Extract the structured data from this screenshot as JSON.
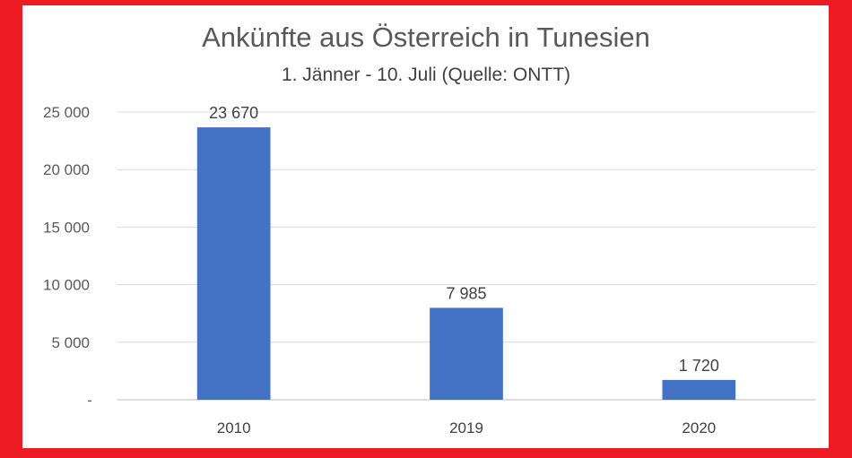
{
  "chart_data": {
    "type": "bar",
    "title": "Ankünfte aus Österreich in Tunesien",
    "subtitle": "1. Jänner - 10. Juli (Quelle: ONTT)",
    "categories": [
      "2010",
      "2019",
      "2020"
    ],
    "values": [
      23670,
      7985,
      1720
    ],
    "value_labels": [
      "23 670",
      "7 985",
      "1 720"
    ],
    "ylim": [
      0,
      25000
    ],
    "y_ticks": [
      0,
      5000,
      10000,
      15000,
      20000,
      25000
    ],
    "y_tick_labels": [
      "-",
      "5 000",
      "10 000",
      "15 000",
      "20 000",
      "25 000"
    ],
    "grid": true,
    "legend": "none",
    "bar_color": "#4472C4",
    "background_color": "#ED1C24"
  }
}
